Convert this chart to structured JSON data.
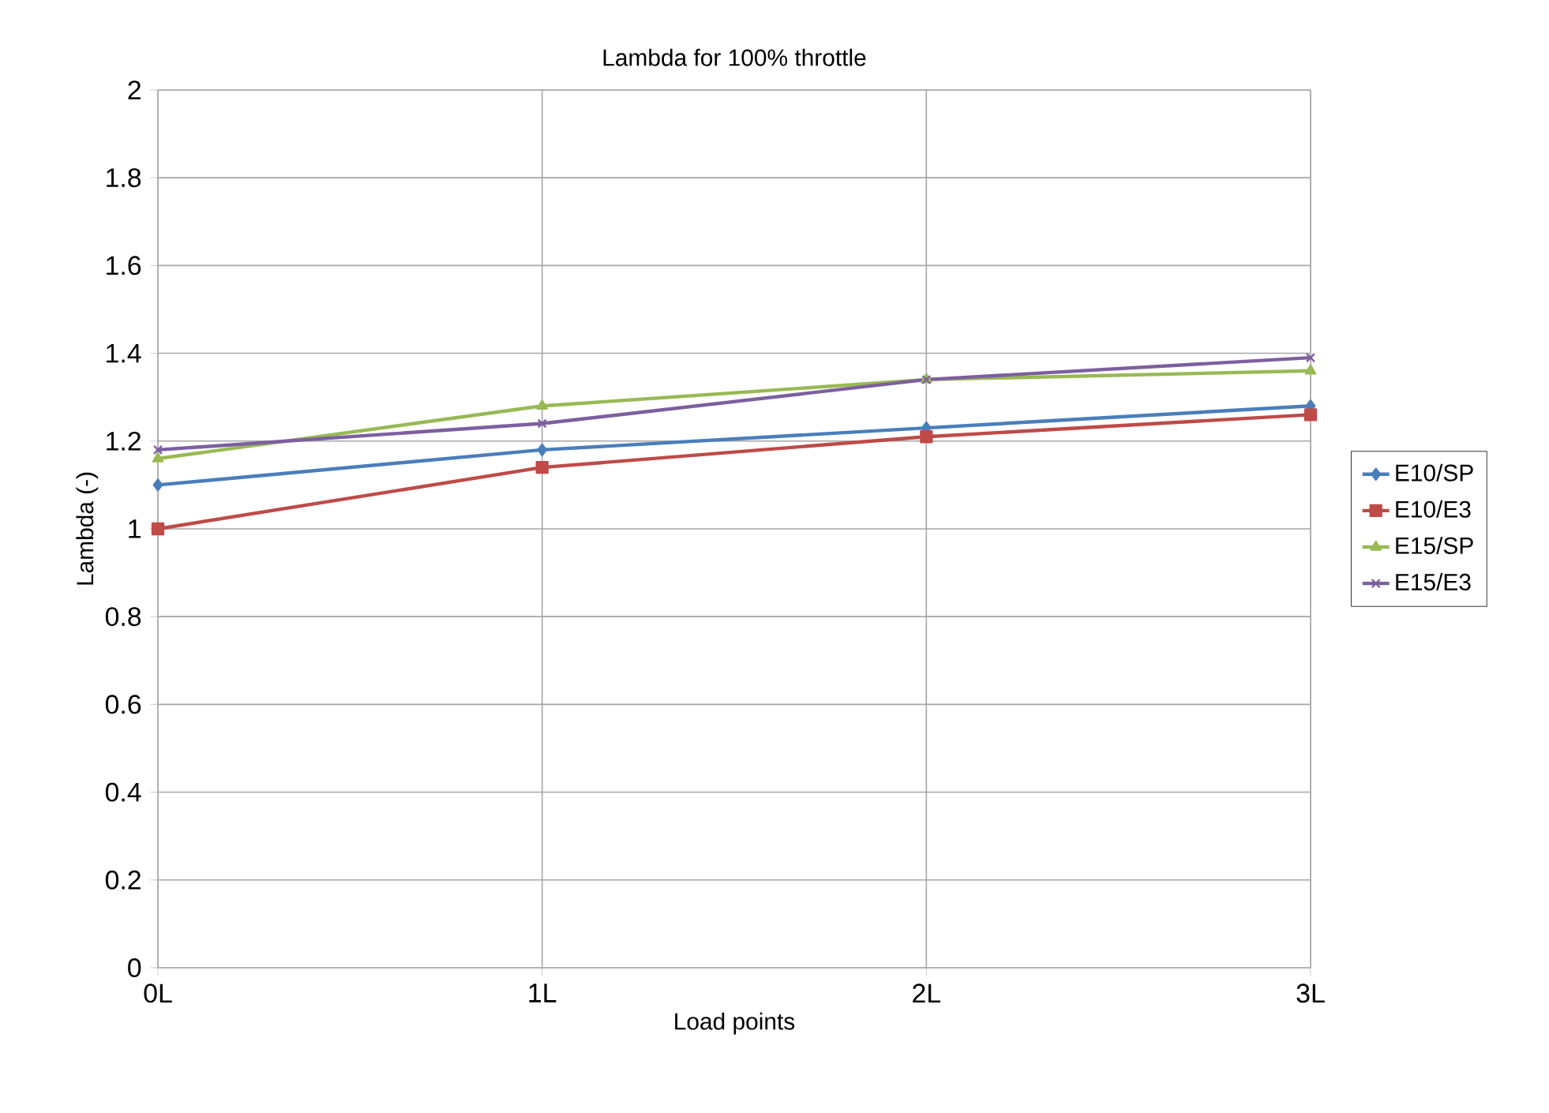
{
  "chart_data": {
    "type": "line",
    "title": "Lambda for 100% throttle",
    "xlabel": "Load points",
    "ylabel": "Lambda (-)",
    "categories": [
      "0L",
      "1L",
      "2L",
      "3L"
    ],
    "series": [
      {
        "name": "E10/SP",
        "color": "#4a7ebb",
        "marker": "diamond",
        "values": [
          1.1,
          1.18,
          1.23,
          1.28
        ]
      },
      {
        "name": "E10/E3",
        "color": "#be4b48",
        "marker": "square",
        "values": [
          1.0,
          1.14,
          1.21,
          1.26
        ]
      },
      {
        "name": "E15/SP",
        "color": "#98b954",
        "marker": "triangle",
        "values": [
          1.16,
          1.28,
          1.34,
          1.36
        ]
      },
      {
        "name": "E15/E3",
        "color": "#7d5fa0",
        "marker": "cross",
        "values": [
          1.18,
          1.24,
          1.34,
          1.39
        ]
      }
    ],
    "ylim": [
      0,
      2
    ],
    "yticks": [
      0,
      0.2,
      0.4,
      0.6,
      0.8,
      1,
      1.2,
      1.4,
      1.6,
      1.8,
      2
    ],
    "grid": true,
    "legend": "right",
    "line_style": "solid"
  }
}
